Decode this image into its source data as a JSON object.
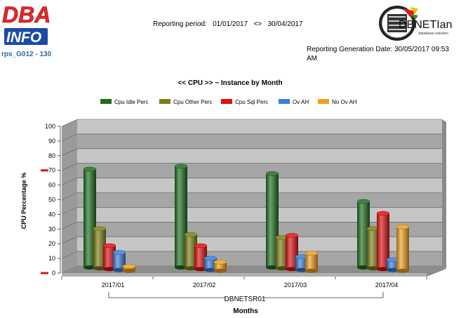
{
  "header": {
    "logo_left_text": [
      "DBA",
      "INFO"
    ],
    "report_id": "rps_G012 - 130",
    "period_label": "Reporting period:",
    "period_from": "01/01/2017",
    "period_sep": "<>",
    "period_to": "30/04/2017",
    "generation_label": "Reporting Generation Date:",
    "generation_date": "30/05/2017 09:53",
    "generation_suffix": "AM",
    "logo_right_text": "DBNETIan",
    "logo_right_sub": "database solution"
  },
  "chart_data": {
    "type": "bar",
    "title": "<< CPU >> ~ Instance by Month",
    "xlabel": "Months",
    "ylabel": "CPU Percentage %",
    "instance_label": "DBNETSR01",
    "categories": [
      "2017/01",
      "2017/02",
      "2017/03",
      "2017/04"
    ],
    "ylim": [
      0,
      100
    ],
    "yticks": [
      0,
      10,
      20,
      30,
      40,
      50,
      60,
      70,
      80,
      90,
      100
    ],
    "markers": [
      0,
      70
    ],
    "grid": true,
    "legend_position": "top",
    "series": [
      {
        "name": "Cpu Idle Perc",
        "color": "#1f6e1f",
        "values": [
          67,
          69,
          64,
          45
        ]
      },
      {
        "name": "Cpu Other Perc",
        "color": "#7f7f16",
        "values": [
          27,
          23,
          21,
          27
        ]
      },
      {
        "name": "Cpu Sql Perc",
        "color": "#e01010",
        "values": [
          16,
          16,
          23,
          38
        ]
      },
      {
        "name": "Ov AH",
        "color": "#3b7fd8",
        "values": [
          12,
          8,
          9,
          7
        ]
      },
      {
        "name": "No Ov AH",
        "color": "#f0a020",
        "values": [
          3,
          6,
          12,
          30
        ]
      }
    ]
  }
}
